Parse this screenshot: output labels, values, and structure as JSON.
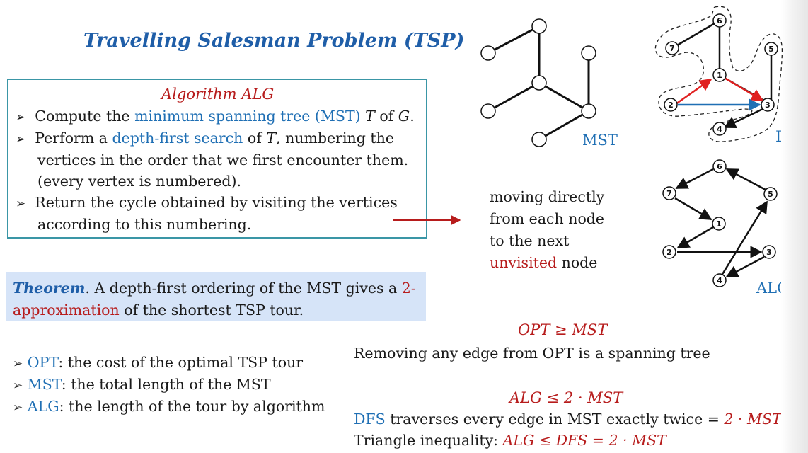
{
  "title": "Travelling Salesman Problem (TSP)",
  "algorithm": {
    "title": "Algorithm ALG",
    "bullet1": {
      "pre": "Compute the ",
      "link": "minimum spanning tree (MST) ",
      "var1": "T",
      "mid": " of ",
      "var2": "G",
      "post": "."
    },
    "bullet2": {
      "pre": "Perform a ",
      "link": "depth-first search",
      "mid": " of ",
      "var": "T",
      "post": ", numbering the"
    },
    "bullet2_line2": "vertices in the order that we first encounter them.",
    "bullet2_line3": "(every vertex is numbered).",
    "bullet3_line1": "Return the cycle obtained by visiting the vertices",
    "bullet3_line2": "according to this numbering."
  },
  "theorem": {
    "label": "Theorem",
    "pre": ". A depth-first ordering of the MST gives a ",
    "red1": "2-",
    "red2": "approximation",
    "post": " of the shortest TSP tour."
  },
  "moving": {
    "line1": "moving directly",
    "line2": "from each node",
    "line3": "to the next",
    "red": "unvisited",
    "post": " node"
  },
  "labels": {
    "mst": "MST",
    "dfs": "DFS",
    "alg": "ALG"
  },
  "defs": [
    {
      "term": "OPT",
      "text": ": the cost of the optimal TSP tour"
    },
    {
      "term": "MST",
      "text": ":  the total length of the MST"
    },
    {
      "term": "ALG",
      "text": ": the length of the tour by algorithm"
    }
  ],
  "proof": {
    "ineq1": "OPT ≥ MST",
    "line1": "Removing any edge from OPT is a spanning tree",
    "ineq2": "ALG ≤ 2 · MST",
    "line2_blue": "DFS",
    "line2_text": " traverses every edge in MST exactly twice = ",
    "line2_red": "2 · MST",
    "line3_text": "Triangle inequality: ",
    "line3_red": "ALG ≤ DFS = 2 · MST"
  },
  "node_numbers": [
    "1",
    "2",
    "3",
    "4",
    "5",
    "6",
    "7"
  ],
  "colors": {
    "title_blue": "#1f5ea8",
    "accent_red": "#b71c1c",
    "box_border": "#3a96a6",
    "theorem_bg": "#d6e4f8",
    "dfs_blue_arrow": "#1f6fb4",
    "dfs_red_arrow": "#e02020"
  }
}
